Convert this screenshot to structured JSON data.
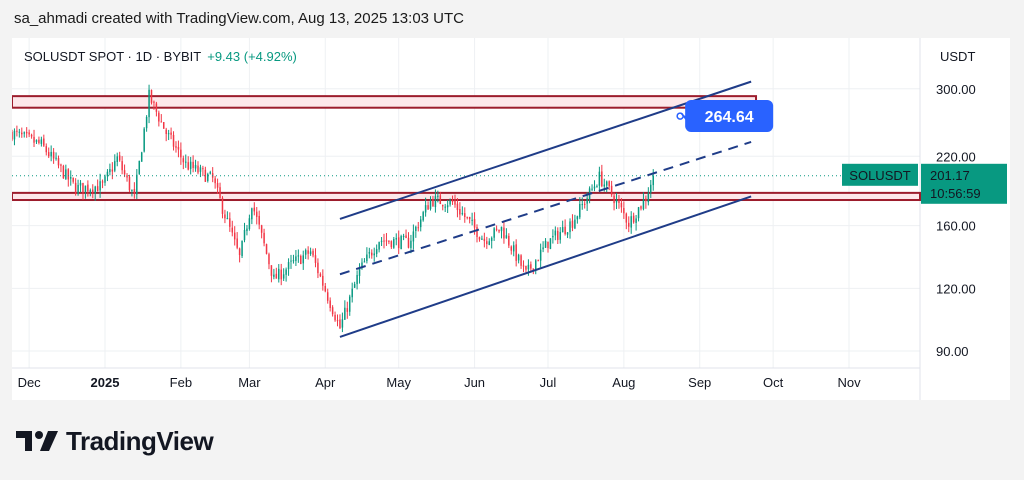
{
  "credit": "sa_ahmadi created with TradingView.com, Aug 13, 2025 13:03 UTC",
  "header": {
    "symbol_text": "SOLUSDT SPOT · 1D · BYBIT",
    "change_text": "+9.43 (+4.92%)",
    "currency": "USDT"
  },
  "brand": {
    "name": "TradingView",
    "logo_icon": "tradingview-logo-icon"
  },
  "colors": {
    "up": "#089981",
    "down": "#f23645",
    "channel": "#1f3c88",
    "zone_fill": "#fde7ea",
    "zone_border": "#9c1c2c",
    "callout": "#2962ff"
  },
  "chart_data": {
    "type": "candlestick",
    "symbol": "SOLUSDT",
    "timeframe": "1D",
    "exchange": "BYBIT",
    "y_scale": "log",
    "x_ticks": [
      {
        "label": "Dec",
        "date": "2024-12-01",
        "bold": false
      },
      {
        "label": "2025",
        "date": "2025-01-01",
        "bold": true
      },
      {
        "label": "Feb",
        "date": "2025-02-01",
        "bold": false
      },
      {
        "label": "Mar",
        "date": "2025-03-01",
        "bold": false
      },
      {
        "label": "Apr",
        "date": "2025-04-01",
        "bold": false
      },
      {
        "label": "May",
        "date": "2025-05-01",
        "bold": false
      },
      {
        "label": "Jun",
        "date": "2025-06-01",
        "bold": false
      },
      {
        "label": "Jul",
        "date": "2025-07-01",
        "bold": false
      },
      {
        "label": "Aug",
        "date": "2025-08-01",
        "bold": false
      },
      {
        "label": "Sep",
        "date": "2025-09-01",
        "bold": false
      },
      {
        "label": "Oct",
        "date": "2025-10-01",
        "bold": false
      },
      {
        "label": "Nov",
        "date": "2025-11-01",
        "bold": false
      }
    ],
    "y_ticks": [
      "300.00",
      "220.00",
      "160.00",
      "120.00",
      "90.00"
    ],
    "last_price": {
      "label": "SOLUSDT",
      "price": "201.17",
      "countdown": "10:56:59"
    },
    "price_path": [
      {
        "date": "2024-11-24",
        "price": 245
      },
      {
        "date": "2024-12-06",
        "price": 232
      },
      {
        "date": "2024-12-20",
        "price": 190
      },
      {
        "date": "2024-12-31",
        "price": 192
      },
      {
        "date": "2025-01-06",
        "price": 218
      },
      {
        "date": "2025-01-13",
        "price": 182
      },
      {
        "date": "2025-01-19",
        "price": 290
      },
      {
        "date": "2025-01-26",
        "price": 245
      },
      {
        "date": "2025-02-03",
        "price": 212
      },
      {
        "date": "2025-02-14",
        "price": 198
      },
      {
        "date": "2025-02-25",
        "price": 138
      },
      {
        "date": "2025-03-02",
        "price": 178
      },
      {
        "date": "2025-03-11",
        "price": 125
      },
      {
        "date": "2025-03-19",
        "price": 135
      },
      {
        "date": "2025-03-26",
        "price": 142
      },
      {
        "date": "2025-04-07",
        "price": 100
      },
      {
        "date": "2025-04-15",
        "price": 130
      },
      {
        "date": "2025-04-23",
        "price": 150
      },
      {
        "date": "2025-05-05",
        "price": 148
      },
      {
        "date": "2025-05-14",
        "price": 180
      },
      {
        "date": "2025-05-23",
        "price": 178
      },
      {
        "date": "2025-06-05",
        "price": 150
      },
      {
        "date": "2025-06-12",
        "price": 158
      },
      {
        "date": "2025-06-22",
        "price": 128
      },
      {
        "date": "2025-07-01",
        "price": 148
      },
      {
        "date": "2025-07-11",
        "price": 163
      },
      {
        "date": "2025-07-22",
        "price": 200
      },
      {
        "date": "2025-07-28",
        "price": 182
      },
      {
        "date": "2025-08-03",
        "price": 162
      },
      {
        "date": "2025-08-10",
        "price": 182
      },
      {
        "date": "2025-08-13",
        "price": 201.17
      }
    ],
    "zones": [
      {
        "name": "resistance-zone",
        "from": "2024-11-24",
        "to": "2025-09-24",
        "low": 275,
        "high": 290
      },
      {
        "name": "support-zone",
        "from": "2024-11-24",
        "to": "2025-11-30",
        "low": 180,
        "high": 186
      }
    ],
    "channel": {
      "upper": [
        {
          "date": "2025-04-07",
          "price": 165
        },
        {
          "date": "2025-09-22",
          "price": 310
        }
      ],
      "middle": [
        {
          "date": "2025-04-07",
          "price": 128
        },
        {
          "date": "2025-09-22",
          "price": 235
        }
      ],
      "lower": [
        {
          "date": "2025-04-07",
          "price": 96
        },
        {
          "date": "2025-09-22",
          "price": 183
        }
      ]
    },
    "target": {
      "label": "264.64",
      "date": "2025-08-24",
      "price": 264.64
    },
    "last_price_line_price": 201.17
  }
}
